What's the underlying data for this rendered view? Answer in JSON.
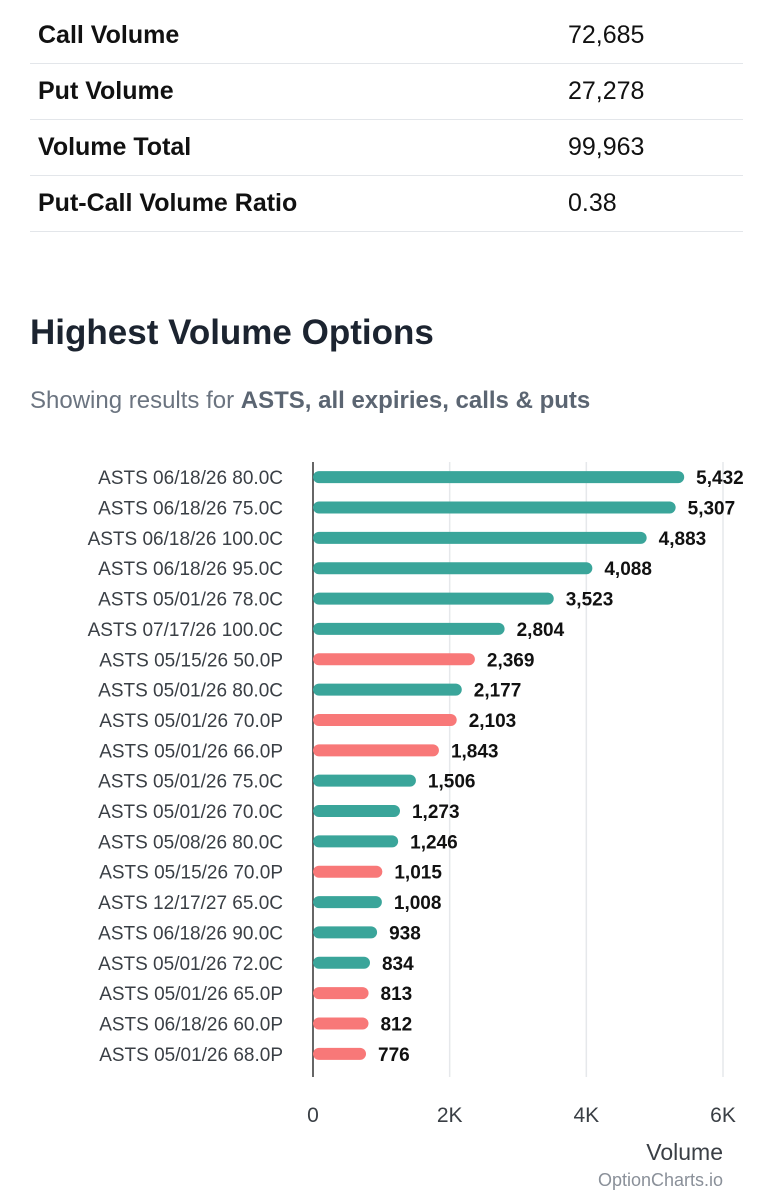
{
  "stats": [
    {
      "label": "Call Volume",
      "value": "72,685"
    },
    {
      "label": "Put Volume",
      "value": "27,278"
    },
    {
      "label": "Volume Total",
      "value": "99,963"
    },
    {
      "label": "Put-Call Volume Ratio",
      "value": "0.38"
    }
  ],
  "section": {
    "title": "Highest Volume Options",
    "subtitle_prefix": "Showing results for ",
    "subtitle_bold": "ASTS, all expiries, calls & puts"
  },
  "colors": {
    "call": "#3aa59a",
    "put": "#f87878",
    "grid": "#e6e8eb",
    "axis": "#333333"
  },
  "chart_data": {
    "type": "bar",
    "orientation": "horizontal",
    "title": "",
    "xlabel": "Volume",
    "ylabel": "",
    "xlim": [
      0,
      6000
    ],
    "x_ticks": [
      0,
      2000,
      4000,
      6000
    ],
    "x_tick_labels": [
      "0",
      "2K",
      "4K",
      "6K"
    ],
    "credit": "OptionCharts.io",
    "categories": [
      "ASTS 06/18/26 80.0C",
      "ASTS 06/18/26 75.0C",
      "ASTS 06/18/26 100.0C",
      "ASTS 06/18/26 95.0C",
      "ASTS 05/01/26 78.0C",
      "ASTS 07/17/26 100.0C",
      "ASTS 05/15/26 50.0P",
      "ASTS 05/01/26 80.0C",
      "ASTS 05/01/26 70.0P",
      "ASTS 05/01/26 66.0P",
      "ASTS 05/01/26 75.0C",
      "ASTS 05/01/26 70.0C",
      "ASTS 05/08/26 80.0C",
      "ASTS 05/15/26 70.0P",
      "ASTS 12/17/27 65.0C",
      "ASTS 06/18/26 90.0C",
      "ASTS 05/01/26 72.0C",
      "ASTS 05/01/26 65.0P",
      "ASTS 06/18/26 60.0P",
      "ASTS 05/01/26 68.0P"
    ],
    "values": [
      5432,
      5307,
      4883,
      4088,
      3523,
      2804,
      2369,
      2177,
      2103,
      1843,
      1506,
      1273,
      1246,
      1015,
      1008,
      938,
      834,
      813,
      812,
      776
    ],
    "value_labels": [
      "5,432",
      "5,307",
      "4,883",
      "4,088",
      "3,523",
      "2,804",
      "2,369",
      "2,177",
      "2,103",
      "1,843",
      "1,506",
      "1,273",
      "1,246",
      "1,015",
      "1,008",
      "938",
      "834",
      "813",
      "812",
      "776"
    ],
    "kinds": [
      "call",
      "call",
      "call",
      "call",
      "call",
      "call",
      "put",
      "call",
      "put",
      "put",
      "call",
      "call",
      "call",
      "put",
      "call",
      "call",
      "call",
      "put",
      "put",
      "put"
    ]
  }
}
